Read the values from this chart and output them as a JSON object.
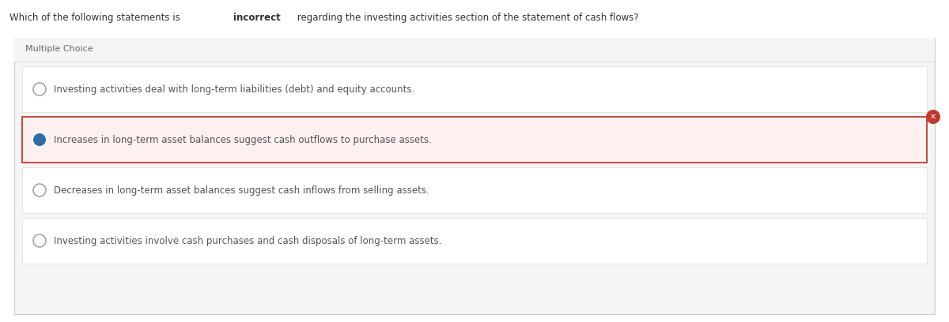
{
  "title_plain": "Which of the following statements is ",
  "title_bold": "incorrect",
  "title_end": " regarding the investing activities section of the statement of cash flows?",
  "section_label": "Multiple Choice",
  "choices": [
    "Investing activities deal with long-term liabilities (debt) and equity accounts.",
    "Increases in long-term asset balances suggest cash outflows to purchase assets.",
    "Decreases in long-term asset balances suggest cash inflows from selling assets.",
    "Investing activities involve cash purchases and cash disposals of long-term assets."
  ],
  "selected_index": 1,
  "bg_color": "#f5f5f5",
  "card_bg": "#ffffff",
  "selected_bg": "#fdf0f0",
  "selected_border": "#c0392b",
  "radio_empty_facecolor": "#ffffff",
  "radio_empty_edgecolor": "#a0a8b0",
  "radio_selected_color": "#2e6da4",
  "x_bg": "#c0392b",
  "x_fg": "#ffffff",
  "text_color": "#555555",
  "title_color": "#333333",
  "section_label_color": "#666666",
  "outer_border_color": "#cccccc",
  "choice_border_color": "#e0e0e0",
  "font_size": 8.5,
  "title_font_size": 8.5
}
